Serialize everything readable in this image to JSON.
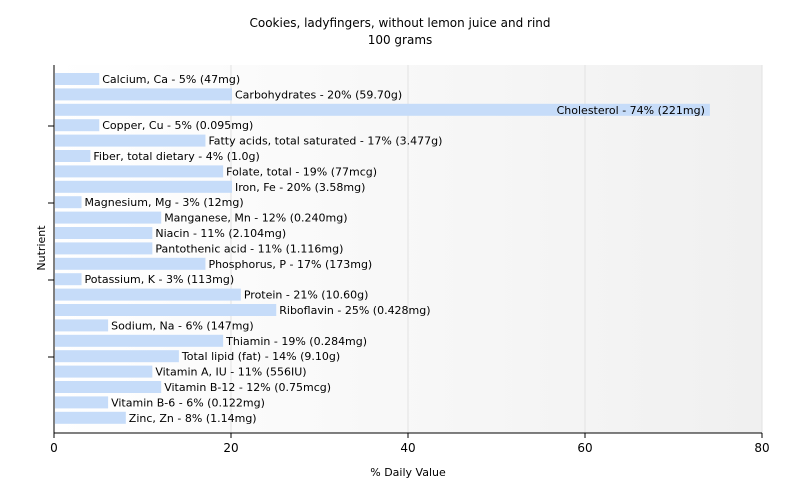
{
  "chart_data": {
    "type": "bar",
    "orientation": "horizontal",
    "title": "Cookies, ladyfingers, without lemon juice and rind",
    "subtitle": "100 grams",
    "xlabel": "% Daily Value",
    "ylabel": "Nutrient",
    "xlim": [
      0,
      80
    ],
    "xticks": [
      0,
      20,
      40,
      60,
      80
    ],
    "grid": true,
    "bar_color": "#c6dcf9",
    "categories": [
      "Calcium, Ca",
      "Carbohydrates",
      "Cholesterol",
      "Copper, Cu",
      "Fatty acids, total saturated",
      "Fiber, total dietary",
      "Folate, total",
      "Iron, Fe",
      "Magnesium, Mg",
      "Manganese, Mn",
      "Niacin",
      "Pantothenic acid",
      "Phosphorus, P",
      "Potassium, K",
      "Protein",
      "Riboflavin",
      "Sodium, Na",
      "Thiamin",
      "Total lipid (fat)",
      "Vitamin A, IU",
      "Vitamin B-12",
      "Vitamin B-6",
      "Zinc, Zn"
    ],
    "values": [
      5,
      20,
      74,
      5,
      17,
      4,
      19,
      20,
      3,
      12,
      11,
      11,
      17,
      3,
      21,
      25,
      6,
      19,
      14,
      11,
      12,
      6,
      8
    ],
    "labels": [
      "Calcium, Ca - 5% (47mg)",
      "Carbohydrates - 20% (59.70g)",
      "Cholesterol - 74% (221mg)",
      "Copper, Cu - 5% (0.095mg)",
      "Fatty acids, total saturated - 17% (3.477g)",
      "Fiber, total dietary - 4% (1.0g)",
      "Folate, total - 19% (77mcg)",
      "Iron, Fe - 20% (3.58mg)",
      "Magnesium, Mg - 3% (12mg)",
      "Manganese, Mn - 12% (0.240mg)",
      "Niacin - 11% (2.104mg)",
      "Pantothenic acid - 11% (1.116mg)",
      "Phosphorus, P - 17% (173mg)",
      "Potassium, K - 3% (113mg)",
      "Protein - 21% (10.60g)",
      "Riboflavin - 25% (0.428mg)",
      "Sodium, Na - 6% (147mg)",
      "Thiamin - 19% (0.284mg)",
      "Total lipid (fat) - 14% (9.10g)",
      "Vitamin A, IU - 11% (556IU)",
      "Vitamin B-12 - 12% (0.75mcg)",
      "Vitamin B-6 - 6% (0.122mg)",
      "Zinc, Zn - 8% (1.14mg)"
    ]
  }
}
